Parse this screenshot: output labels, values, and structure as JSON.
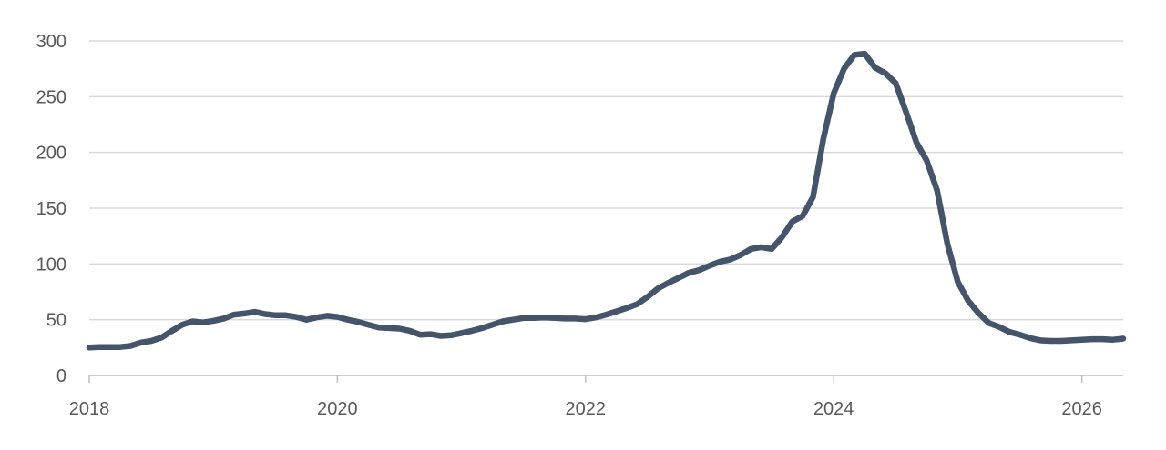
{
  "chart_data": {
    "type": "line",
    "title": "",
    "xlabel": "",
    "ylabel": "",
    "xlim": [
      "2018-01",
      "2026-05"
    ],
    "ylim": [
      0,
      300
    ],
    "x_ticks": [
      "2018",
      "2020",
      "2022",
      "2024",
      "2026"
    ],
    "y_ticks": [
      "0",
      "50",
      "100",
      "150",
      "200",
      "250",
      "300"
    ],
    "grid": "horizontal",
    "legend": "none",
    "colors": {
      "line": "#44546a",
      "grid": "#d9d9d9",
      "axis": "#bfbfbf",
      "text": "#595959"
    },
    "series": [
      {
        "x": [
          "2018-01",
          "2018-02",
          "2018-03",
          "2018-04",
          "2018-05",
          "2018-06",
          "2018-07",
          "2018-08",
          "2018-09",
          "2018-10",
          "2018-11",
          "2018-12",
          "2019-01",
          "2019-02",
          "2019-03",
          "2019-04",
          "2019-05",
          "2019-06",
          "2019-07",
          "2019-08",
          "2019-09",
          "2019-10",
          "2019-11",
          "2019-12",
          "2020-01",
          "2020-02",
          "2020-03",
          "2020-04",
          "2020-05",
          "2020-06",
          "2020-07",
          "2020-08",
          "2020-09",
          "2020-10",
          "2020-11",
          "2020-12",
          "2021-01",
          "2021-02",
          "2021-03",
          "2021-04",
          "2021-05",
          "2021-06",
          "2021-07",
          "2021-08",
          "2021-09",
          "2021-10",
          "2021-11",
          "2021-12",
          "2022-01",
          "2022-02",
          "2022-03",
          "2022-04",
          "2022-05",
          "2022-06",
          "2022-07",
          "2022-08",
          "2022-09",
          "2022-10",
          "2022-11",
          "2022-12",
          "2023-01",
          "2023-02",
          "2023-03",
          "2023-04",
          "2023-05",
          "2023-06",
          "2023-07",
          "2023-08",
          "2023-09",
          "2023-10",
          "2023-11",
          "2023-12",
          "2024-01",
          "2024-02",
          "2024-03",
          "2024-04",
          "2024-05",
          "2024-06",
          "2024-07",
          "2024-08",
          "2024-09",
          "2024-10",
          "2024-11",
          "2024-12",
          "2025-01",
          "2025-02",
          "2025-03",
          "2025-04",
          "2025-05",
          "2025-06",
          "2025-07",
          "2025-08",
          "2025-09",
          "2025-10",
          "2025-11",
          "2025-12",
          "2026-01",
          "2026-02",
          "2026-03",
          "2026-04",
          "2026-05"
        ],
        "values": [
          25,
          25.5,
          25.5,
          25.5,
          26.5,
          29.5,
          31,
          34,
          40,
          45.5,
          48.5,
          47.5,
          49,
          51,
          54.5,
          55.5,
          57,
          55,
          54,
          54,
          52.5,
          50,
          52,
          53.5,
          52.5,
          50,
          48,
          45.5,
          43,
          42.5,
          42,
          40,
          36.5,
          37,
          35.5,
          36,
          38,
          40,
          42.5,
          45.5,
          48.5,
          50,
          51.5,
          51.5,
          52,
          51.5,
          51,
          51,
          50.5,
          52,
          54.5,
          57.5,
          60.5,
          64,
          70.5,
          78,
          83,
          87.5,
          92,
          94.5,
          98.5,
          102,
          104,
          108,
          113.5,
          115,
          113.5,
          124,
          138,
          143,
          160,
          212,
          253,
          275,
          287.5,
          288.5,
          276,
          271,
          262,
          236,
          209,
          192.5,
          166,
          118,
          84,
          67,
          56,
          47,
          43.5,
          39,
          36.5,
          33.5,
          31.5,
          31,
          31,
          31.5,
          32,
          32.5,
          32.5,
          32,
          33
        ]
      }
    ]
  }
}
